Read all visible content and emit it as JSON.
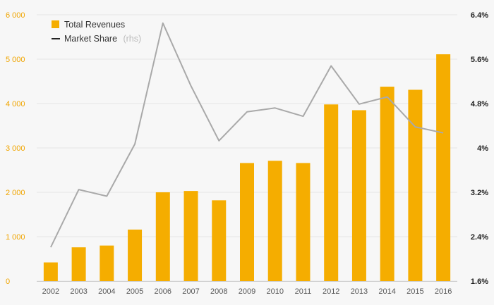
{
  "chart_data": {
    "type": "bar",
    "categories": [
      "2002",
      "2003",
      "2004",
      "2005",
      "2006",
      "2007",
      "2008",
      "2009",
      "2010",
      "2011",
      "2012",
      "2013",
      "2014",
      "2015",
      "2016"
    ],
    "series": [
      {
        "name": "Total Revenues",
        "type": "bar",
        "axis": "left",
        "color": "#f5ad00",
        "values": [
          420,
          760,
          800,
          1160,
          2000,
          2030,
          1820,
          2660,
          2710,
          2660,
          3980,
          3850,
          4380,
          4310,
          5110
        ]
      },
      {
        "name": "Market Share",
        "type": "line",
        "axis": "right",
        "color": "#a9a9a9",
        "values": [
          2.21,
          3.25,
          3.13,
          4.07,
          6.25,
          5.12,
          4.13,
          4.65,
          4.72,
          4.57,
          5.48,
          4.79,
          4.92,
          4.38,
          4.27
        ]
      }
    ],
    "y_left": {
      "lim": [
        0,
        6000
      ],
      "ticks": [
        0,
        1000,
        2000,
        3000,
        4000,
        5000,
        6000
      ],
      "tick_labels": [
        "0",
        "1 000",
        "2 000",
        "3 000",
        "4 000",
        "5 000",
        "6 000"
      ]
    },
    "y_right": {
      "lim": [
        1.6,
        6.4
      ],
      "ticks": [
        1.6,
        2.4,
        3.2,
        4.0,
        4.8,
        5.6,
        6.4
      ],
      "tick_labels": [
        "1.6%",
        "2.4%",
        "3.2%",
        "4%",
        "4.8%",
        "5.6%",
        "6.4%"
      ]
    },
    "grid": true,
    "legend": {
      "placement": "top-left",
      "entries": [
        {
          "label": "Total Revenues",
          "suffix": ""
        },
        {
          "label": "Market Share",
          "suffix": "(rhs)"
        }
      ]
    }
  },
  "colors": {
    "background": "#f7f7f7",
    "bar": "#f5ad00",
    "line": "#a9a9a9",
    "line_legend": "#222222",
    "grid": "#e6e6e6",
    "left_ticks": "#f0a500",
    "right_ticks": "#222222"
  }
}
